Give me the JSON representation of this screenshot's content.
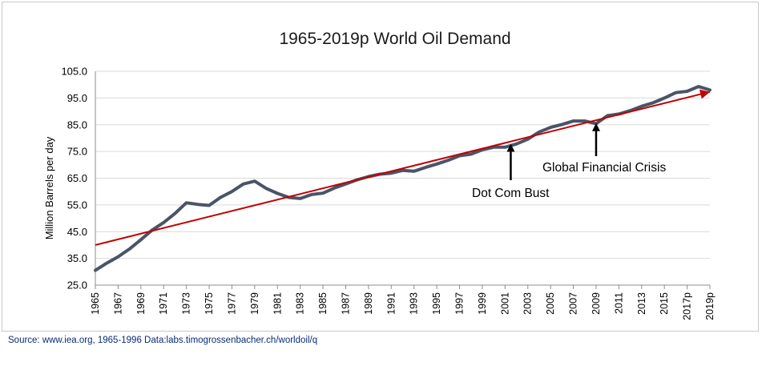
{
  "chart_data": {
    "type": "line",
    "title": "1965-2019p World Oil Demand",
    "ylabel": "Million Barrels per day",
    "xlabel": "",
    "ylim": [
      25,
      105
    ],
    "yticks": [
      "105.0",
      "95.0",
      "85.0",
      "75.0",
      "65.0",
      "55.0",
      "45.0",
      "35.0",
      "25.0"
    ],
    "grid": true,
    "legend": "none",
    "x_tick_labels": [
      "1965",
      "1967",
      "1969",
      "1971",
      "1973",
      "1975",
      "1977",
      "1979",
      "1981",
      "1983",
      "1985",
      "1987",
      "1989",
      "1991",
      "1993",
      "1995",
      "1997",
      "1999",
      "2001",
      "2003",
      "2005",
      "2007",
      "2009",
      "2011",
      "2013",
      "2015",
      "2017p",
      "2019p"
    ],
    "x": [
      1965,
      1966,
      1967,
      1968,
      1969,
      1970,
      1971,
      1972,
      1973,
      1974,
      1975,
      1976,
      1977,
      1978,
      1979,
      1980,
      1981,
      1982,
      1983,
      1984,
      1985,
      1986,
      1987,
      1988,
      1989,
      1990,
      1991,
      1992,
      1993,
      1994,
      1995,
      1996,
      1997,
      1998,
      1999,
      2000,
      2001,
      2002,
      2003,
      2004,
      2005,
      2006,
      2007,
      2008,
      2009,
      2010,
      2011,
      2012,
      2013,
      2014,
      2015,
      2016,
      2017,
      2018,
      2019
    ],
    "series": [
      {
        "color": "#4a5468",
        "values": [
          30.5,
          33.2,
          35.6,
          38.5,
          42.0,
          45.6,
          48.4,
          51.8,
          55.8,
          55.2,
          54.8,
          57.8,
          60.0,
          62.8,
          63.9,
          61.2,
          59.3,
          57.8,
          57.4,
          58.9,
          59.4,
          61.3,
          62.8,
          64.4,
          65.6,
          66.5,
          66.9,
          67.9,
          67.6,
          69.0,
          70.3,
          71.7,
          73.4,
          74.0,
          75.6,
          76.6,
          76.6,
          77.8,
          79.6,
          82.3,
          84.0,
          85.1,
          86.4,
          86.4,
          85.4,
          88.4,
          89.0,
          90.3,
          91.9,
          93.2,
          95.0,
          97.0,
          97.5,
          99.3,
          98.0
        ]
      }
    ],
    "trendline": {
      "color": "#c00000",
      "x": [
        1965,
        2019
      ],
      "y": [
        40.0,
        97.3
      ]
    },
    "annotations": [
      {
        "text": "Dot Com Bust",
        "year": 2001
      },
      {
        "text": "Global Financial Crisis",
        "year": 2009
      }
    ]
  },
  "source": "Source: www.iea.org,  1965-1996 Data:labs.timogrossenbacher.ch/worldoil/q",
  "colors": {
    "grid": "#d9d9d9",
    "axis": "#8c8c8c"
  }
}
